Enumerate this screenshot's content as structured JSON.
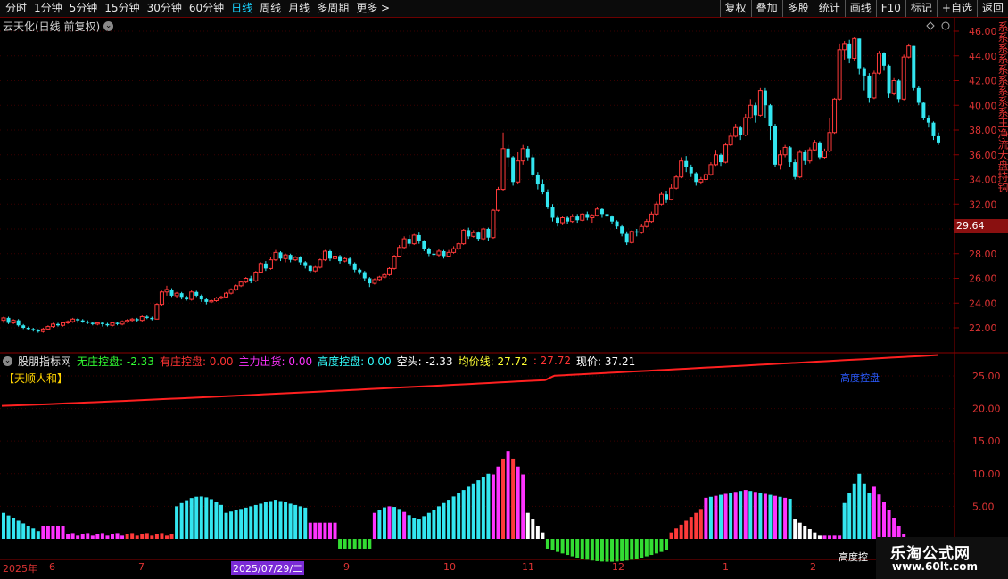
{
  "toolbar": {
    "periods": [
      "分时",
      "1分钟",
      "5分钟",
      "15分钟",
      "30分钟",
      "60分钟",
      "日线",
      "周线",
      "月线",
      "多周期",
      "更多 >"
    ],
    "active": "日线",
    "right_buttons": [
      "复权",
      "叠加",
      "多股",
      "统计",
      "画线",
      "F10",
      "标记",
      "+自选",
      "返回"
    ]
  },
  "chart_title": "云天化(日线 前复权)",
  "price_axis": [
    "46.00",
    "44.00",
    "42.00",
    "40.00",
    "38.00",
    "36.00",
    "34.00",
    "32.00",
    "30.00",
    "28.00",
    "26.00",
    "24.00",
    "22.00"
  ],
  "current_price_tag": "29.64",
  "indicator": {
    "name": "股朋指标网",
    "items": [
      {
        "label": "无庄控盘: -2.33",
        "color": "#33ff33"
      },
      {
        "label": "有庄控盘: 0.00",
        "color": "#ff3333"
      },
      {
        "label": "主力出货: 0.00",
        "color": "#ff33ff"
      },
      {
        "label": "高度控盘: 0.00",
        "color": "#33ffff"
      },
      {
        "label": "空头: -2.33",
        "color": "#ffffff"
      },
      {
        "label": "均价线: 27.72",
        "color": "#ffff33"
      },
      {
        "label": ": 27.72",
        "color": "#ff3333"
      },
      {
        "label": "现价: 37.21",
        "color": "#ffffff"
      }
    ],
    "subtitle": "【天顺人和】",
    "axis": [
      "25.00",
      "20.00",
      "15.00",
      "10.00",
      "5.00"
    ],
    "annotation": "高度控盘"
  },
  "dates": [
    {
      "label": "2025年",
      "x": 3
    },
    {
      "label": "6",
      "x": 55
    },
    {
      "label": "7",
      "x": 155
    },
    {
      "label": "2025/07/29/二",
      "x": 259,
      "highlight": true
    },
    {
      "label": "9",
      "x": 385
    },
    {
      "label": "10",
      "x": 497
    },
    {
      "label": "11",
      "x": 585
    },
    {
      "label": "12",
      "x": 686
    },
    {
      "label": "1",
      "x": 810
    },
    {
      "label": "2",
      "x": 908
    }
  ],
  "right_strip": "系系系系系系系系系王净流大盘持钩",
  "bottom_label": "高度控",
  "watermark": {
    "line1": "乐淘公式网",
    "line2": "www.60lt.com"
  },
  "chart_data": {
    "type": "candlestick",
    "title": "云天化(日线 前复权)",
    "ylim": [
      21,
      46.5
    ],
    "candles": [
      [
        22.6,
        22.8,
        22.4,
        22.9
      ],
      [
        22.8,
        22.4,
        22.3,
        22.9
      ],
      [
        22.4,
        22.6,
        22.3,
        22.7
      ],
      [
        22.6,
        22.2,
        22.1,
        22.7
      ],
      [
        22.2,
        22.0,
        21.9,
        22.3
      ],
      [
        22.0,
        21.9,
        21.8,
        22.1
      ],
      [
        21.9,
        21.8,
        21.7,
        22.0
      ],
      [
        21.8,
        21.7,
        21.6,
        21.9
      ],
      [
        21.7,
        21.9,
        21.6,
        22.0
      ],
      [
        21.9,
        22.1,
        21.8,
        22.2
      ],
      [
        22.1,
        22.3,
        22.0,
        22.4
      ],
      [
        22.3,
        22.2,
        22.1,
        22.4
      ],
      [
        22.2,
        22.4,
        22.1,
        22.5
      ],
      [
        22.4,
        22.5,
        22.3,
        22.6
      ],
      [
        22.5,
        22.7,
        22.4,
        22.8
      ],
      [
        22.7,
        22.6,
        22.4,
        22.8
      ],
      [
        22.6,
        22.5,
        22.4,
        22.7
      ],
      [
        22.5,
        22.4,
        22.3,
        22.6
      ],
      [
        22.4,
        22.3,
        22.2,
        22.5
      ],
      [
        22.3,
        22.4,
        22.2,
        22.5
      ],
      [
        22.4,
        22.3,
        22.1,
        22.5
      ],
      [
        22.3,
        22.2,
        22.1,
        22.4
      ],
      [
        22.2,
        22.4,
        22.1,
        22.5
      ],
      [
        22.4,
        22.3,
        22.2,
        22.5
      ],
      [
        22.3,
        22.5,
        22.2,
        22.6
      ],
      [
        22.5,
        22.6,
        22.4,
        22.7
      ],
      [
        22.6,
        22.7,
        22.5,
        22.8
      ],
      [
        22.7,
        22.6,
        22.5,
        22.8
      ],
      [
        22.6,
        22.9,
        22.5,
        23.0
      ],
      [
        22.9,
        22.8,
        22.7,
        23.0
      ],
      [
        22.8,
        22.7,
        22.6,
        22.9
      ],
      [
        22.7,
        23.9,
        22.7,
        24.0
      ],
      [
        23.9,
        24.9,
        23.8,
        25.0
      ],
      [
        24.9,
        25.1,
        24.6,
        25.4
      ],
      [
        25.1,
        24.6,
        24.5,
        25.2
      ],
      [
        24.6,
        24.8,
        24.4,
        24.9
      ],
      [
        24.8,
        24.5,
        24.3,
        24.9
      ],
      [
        24.5,
        24.3,
        24.2,
        24.6
      ],
      [
        24.3,
        24.9,
        24.2,
        25.1
      ],
      [
        24.9,
        24.6,
        24.5,
        25.0
      ],
      [
        24.6,
        24.3,
        24.1,
        24.7
      ],
      [
        24.3,
        24.1,
        23.9,
        24.4
      ],
      [
        24.1,
        24.2,
        24.0,
        24.3
      ],
      [
        24.2,
        24.4,
        24.1,
        24.5
      ],
      [
        24.4,
        24.5,
        24.3,
        24.6
      ],
      [
        24.5,
        24.8,
        24.4,
        24.9
      ],
      [
        24.8,
        25.1,
        24.7,
        25.2
      ],
      [
        25.1,
        25.4,
        25.0,
        25.5
      ],
      [
        25.4,
        25.7,
        25.3,
        25.8
      ],
      [
        25.7,
        26.0,
        25.6,
        26.1
      ],
      [
        26.0,
        25.8,
        25.6,
        26.2
      ],
      [
        25.8,
        26.5,
        25.7,
        26.6
      ],
      [
        26.5,
        27.2,
        26.4,
        27.3
      ],
      [
        27.2,
        26.8,
        26.6,
        27.4
      ],
      [
        26.8,
        27.5,
        26.7,
        27.7
      ],
      [
        27.5,
        28.1,
        27.4,
        28.3
      ],
      [
        28.1,
        27.6,
        27.4,
        28.2
      ],
      [
        27.6,
        27.9,
        27.3,
        28.0
      ],
      [
        27.9,
        27.5,
        27.3,
        28.0
      ],
      [
        27.5,
        27.7,
        27.4,
        27.8
      ],
      [
        27.7,
        27.3,
        27.1,
        27.8
      ],
      [
        27.3,
        27.0,
        26.8,
        27.4
      ],
      [
        27.0,
        26.6,
        26.4,
        27.1
      ],
      [
        26.6,
        26.9,
        26.5,
        27.0
      ],
      [
        26.9,
        27.5,
        26.8,
        27.6
      ],
      [
        27.5,
        28.2,
        27.4,
        28.3
      ],
      [
        28.2,
        27.6,
        27.4,
        28.3
      ],
      [
        27.6,
        27.8,
        27.4,
        27.9
      ],
      [
        27.8,
        27.4,
        27.2,
        27.9
      ],
      [
        27.4,
        27.6,
        27.3,
        27.7
      ],
      [
        27.6,
        27.2,
        27.0,
        27.7
      ],
      [
        27.2,
        26.7,
        26.5,
        27.3
      ],
      [
        26.7,
        26.5,
        26.3,
        26.8
      ],
      [
        26.5,
        26.0,
        25.8,
        26.6
      ],
      [
        26.0,
        25.6,
        25.3,
        26.1
      ],
      [
        25.6,
        25.9,
        25.5,
        26.0
      ],
      [
        25.9,
        26.1,
        25.8,
        26.2
      ],
      [
        26.1,
        26.3,
        26.0,
        26.4
      ],
      [
        26.3,
        26.8,
        26.2,
        26.9
      ],
      [
        26.8,
        27.8,
        26.7,
        27.9
      ],
      [
        27.8,
        28.5,
        27.7,
        28.7
      ],
      [
        28.5,
        29.2,
        28.4,
        29.4
      ],
      [
        29.2,
        28.8,
        28.6,
        29.5
      ],
      [
        28.8,
        29.5,
        28.7,
        29.6
      ],
      [
        29.5,
        29.0,
        28.8,
        29.7
      ],
      [
        29.0,
        28.4,
        28.2,
        29.1
      ],
      [
        28.4,
        28.0,
        27.8,
        28.5
      ],
      [
        28.0,
        27.9,
        27.7,
        28.2
      ],
      [
        27.9,
        28.2,
        27.7,
        28.4
      ],
      [
        28.2,
        27.8,
        27.6,
        28.3
      ],
      [
        27.8,
        28.1,
        27.7,
        28.3
      ],
      [
        28.1,
        28.4,
        28.0,
        28.6
      ],
      [
        28.4,
        28.8,
        28.3,
        28.9
      ],
      [
        28.8,
        29.9,
        28.7,
        30.0
      ],
      [
        29.9,
        29.4,
        29.2,
        30.1
      ],
      [
        29.4,
        29.7,
        29.3,
        29.9
      ],
      [
        29.7,
        29.2,
        29.0,
        29.8
      ],
      [
        29.2,
        30.0,
        29.1,
        30.1
      ],
      [
        30.0,
        29.3,
        29.0,
        30.1
      ],
      [
        29.3,
        31.5,
        29.2,
        31.6
      ],
      [
        31.5,
        33.2,
        31.4,
        33.4
      ],
      [
        33.2,
        36.5,
        33.1,
        37.8
      ],
      [
        36.5,
        35.8,
        35.0,
        36.8
      ],
      [
        35.8,
        33.8,
        33.5,
        35.9
      ],
      [
        33.8,
        35.5,
        33.6,
        36.2
      ],
      [
        35.5,
        36.5,
        35.2,
        36.8
      ],
      [
        36.5,
        35.8,
        35.5,
        36.7
      ],
      [
        35.8,
        34.4,
        34.2,
        36.0
      ],
      [
        34.4,
        33.6,
        33.2,
        34.6
      ],
      [
        33.6,
        33.0,
        32.8,
        34.0
      ],
      [
        33.0,
        31.8,
        31.6,
        33.2
      ],
      [
        31.8,
        30.9,
        30.6,
        32.0
      ],
      [
        30.9,
        30.5,
        30.2,
        31.1
      ],
      [
        30.5,
        30.9,
        30.3,
        31.0
      ],
      [
        30.9,
        30.6,
        30.4,
        31.0
      ],
      [
        30.6,
        31.0,
        30.5,
        31.2
      ],
      [
        31.0,
        30.7,
        30.5,
        31.2
      ],
      [
        30.7,
        31.2,
        30.6,
        31.3
      ],
      [
        31.2,
        30.9,
        30.7,
        31.4
      ],
      [
        30.9,
        31.1,
        30.5,
        31.2
      ],
      [
        31.1,
        31.6,
        31.0,
        31.8
      ],
      [
        31.6,
        31.2,
        30.9,
        31.7
      ],
      [
        31.2,
        31.0,
        30.7,
        31.4
      ],
      [
        31.0,
        30.6,
        30.4,
        31.1
      ],
      [
        30.6,
        30.2,
        30.0,
        30.7
      ],
      [
        30.2,
        29.6,
        29.4,
        30.3
      ],
      [
        29.6,
        28.9,
        28.7,
        29.8
      ],
      [
        28.9,
        29.8,
        28.8,
        29.9
      ],
      [
        29.8,
        29.7,
        29.4,
        30.0
      ],
      [
        29.7,
        30.2,
        29.6,
        30.4
      ],
      [
        30.2,
        30.6,
        30.1,
        30.8
      ],
      [
        30.6,
        31.2,
        30.5,
        31.4
      ],
      [
        31.2,
        32.0,
        31.1,
        32.2
      ],
      [
        32.0,
        32.8,
        31.9,
        33.0
      ],
      [
        32.8,
        32.4,
        32.1,
        33.1
      ],
      [
        32.4,
        33.3,
        32.3,
        33.6
      ],
      [
        33.3,
        34.2,
        33.2,
        34.4
      ],
      [
        34.2,
        35.5,
        34.1,
        35.8
      ],
      [
        35.5,
        35.0,
        34.6,
        35.9
      ],
      [
        35.0,
        34.5,
        34.2,
        35.2
      ],
      [
        34.5,
        33.8,
        33.5,
        34.6
      ],
      [
        33.8,
        34.0,
        33.6,
        34.2
      ],
      [
        34.0,
        34.4,
        33.8,
        34.6
      ],
      [
        34.4,
        35.2,
        34.3,
        35.4
      ],
      [
        35.2,
        36.0,
        35.1,
        36.4
      ],
      [
        36.0,
        35.4,
        35.1,
        36.1
      ],
      [
        35.4,
        36.8,
        35.3,
        37.0
      ],
      [
        36.8,
        37.5,
        36.7,
        37.8
      ],
      [
        37.5,
        38.2,
        37.4,
        38.5
      ],
      [
        38.2,
        37.6,
        37.2,
        38.3
      ],
      [
        37.6,
        39.0,
        37.5,
        39.3
      ],
      [
        39.0,
        40.0,
        38.9,
        40.5
      ],
      [
        40.0,
        39.2,
        38.6,
        40.2
      ],
      [
        39.2,
        41.2,
        39.1,
        41.4
      ],
      [
        41.2,
        40.0,
        39.0,
        41.4
      ],
      [
        40.0,
        38.3,
        37.2,
        40.1
      ],
      [
        38.3,
        35.2,
        35.0,
        38.5
      ],
      [
        35.2,
        36.0,
        34.8,
        36.4
      ],
      [
        36.0,
        36.6,
        35.8,
        36.8
      ],
      [
        36.6,
        35.4,
        35.0,
        36.7
      ],
      [
        35.4,
        34.2,
        34.0,
        35.6
      ],
      [
        34.2,
        36.2,
        34.1,
        36.4
      ],
      [
        36.2,
        35.5,
        35.2,
        36.4
      ],
      [
        35.5,
        36.4,
        35.3,
        36.6
      ],
      [
        36.4,
        37.0,
        36.3,
        37.2
      ],
      [
        37.0,
        35.8,
        35.6,
        37.1
      ],
      [
        35.8,
        36.3,
        35.7,
        36.5
      ],
      [
        36.3,
        37.8,
        36.2,
        39.0
      ],
      [
        37.8,
        40.5,
        37.7,
        40.6
      ],
      [
        40.5,
        44.5,
        40.4,
        45.0
      ],
      [
        44.5,
        45.0,
        43.7,
        45.2
      ],
      [
        45.0,
        43.8,
        43.4,
        45.3
      ],
      [
        43.8,
        45.4,
        43.6,
        45.5
      ],
      [
        45.4,
        43.0,
        42.5,
        45.4
      ],
      [
        43.0,
        42.4,
        41.2,
        43.1
      ],
      [
        42.4,
        40.6,
        40.2,
        42.6
      ],
      [
        40.6,
        42.6,
        40.5,
        42.8
      ],
      [
        42.6,
        44.2,
        42.5,
        44.4
      ],
      [
        44.2,
        43.2,
        42.8,
        44.3
      ],
      [
        43.2,
        41.0,
        40.6,
        43.3
      ],
      [
        41.0,
        42.0,
        40.8,
        42.2
      ],
      [
        42.0,
        40.5,
        40.2,
        42.1
      ],
      [
        40.5,
        43.9,
        40.4,
        44.1
      ],
      [
        43.9,
        44.8,
        43.8,
        45.0
      ],
      [
        44.8,
        41.4,
        41.2,
        44.8
      ],
      [
        41.4,
        40.2,
        40.0,
        41.6
      ],
      [
        40.2,
        39.0,
        38.8,
        40.3
      ],
      [
        39.0,
        38.6,
        38.2,
        39.2
      ],
      [
        38.6,
        37.5,
        37.2,
        38.7
      ],
      [
        37.5,
        37.0,
        36.8,
        37.8
      ]
    ],
    "ma_line": {
      "start": 20.4,
      "end": 27.6
    },
    "indicator_bars": "bars colored cyan/white/magenta/red/green representing 控盘 levels"
  }
}
